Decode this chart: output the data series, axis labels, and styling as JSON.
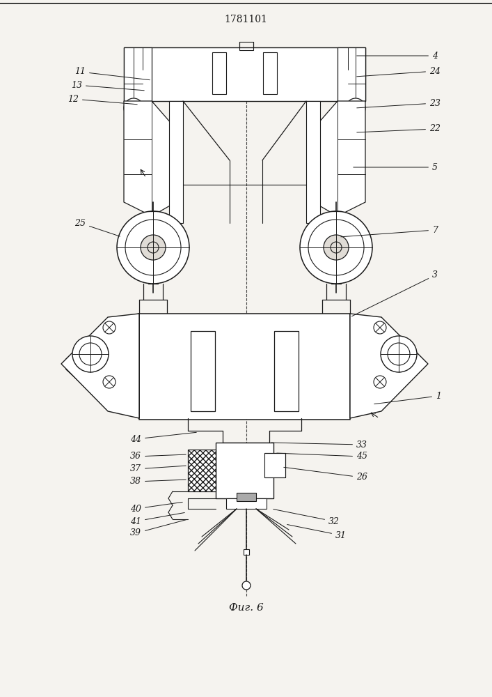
{
  "title": "1781101",
  "fig_label": "Фиг. 6",
  "bg_color": "#ffffff",
  "line_color": "#1a1a1a",
  "paper_color": "#f5f3ef"
}
